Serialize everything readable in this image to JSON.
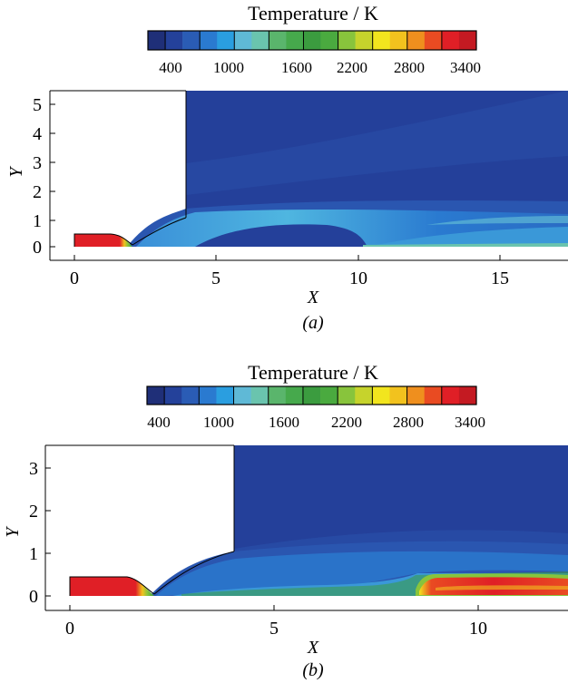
{
  "colors": {
    "scale": [
      "#1f2f78",
      "#24419a",
      "#2a5cb5",
      "#2a7ad0",
      "#2a9ee0",
      "#5fb9d6",
      "#6ac4ae",
      "#5ab56c",
      "#46a94c",
      "#3b9c3f",
      "#4aaa3f",
      "#88c43c",
      "#c6d32c",
      "#f2e51e",
      "#f2c21e",
      "#ef8f1e",
      "#e94b22",
      "#e01f26",
      "#c41a22"
    ],
    "deep_blue": "#24409a",
    "hot_red": "#e01f26",
    "edge": "#000000"
  },
  "panels": [
    {
      "id": "a",
      "colorbar_title": "Temperature / K",
      "colorbar_ticks": [
        "400",
        "1000",
        "1600",
        "2200",
        "2800",
        "3400"
      ],
      "x_ticks": [
        "0",
        "5",
        "10",
        "15"
      ],
      "y_ticks": [
        "0",
        "1",
        "2",
        "3",
        "4",
        "5"
      ],
      "xlabel": "X",
      "ylabel": "Y",
      "caption": "(a)"
    },
    {
      "id": "b",
      "colorbar_title": "Temperature / K",
      "colorbar_ticks": [
        "400",
        "1000",
        "1600",
        "2200",
        "2800",
        "3400"
      ],
      "x_ticks": [
        "0",
        "5",
        "10"
      ],
      "y_ticks": [
        "0",
        "1",
        "2",
        "3"
      ],
      "xlabel": "X",
      "ylabel": "Y",
      "caption": "(b)"
    }
  ]
}
